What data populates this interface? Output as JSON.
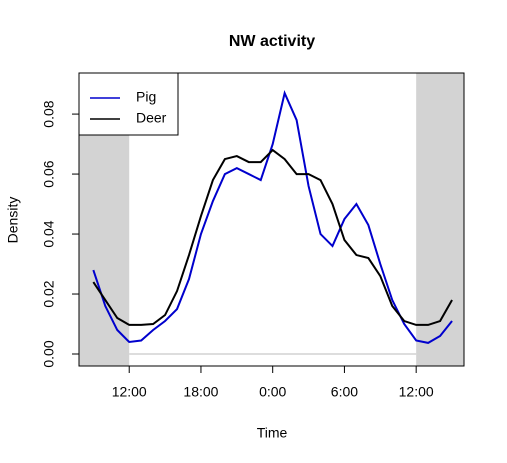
{
  "chart_data": {
    "type": "line",
    "title": "NW activity",
    "x_label": "Time",
    "y_label": "Density",
    "x": [
      9,
      10,
      11,
      12,
      13,
      14,
      15,
      16,
      17,
      18,
      19,
      20,
      21,
      22,
      23,
      24,
      25,
      26,
      27,
      28,
      29,
      30,
      31,
      32,
      33,
      34,
      35,
      36,
      37,
      38,
      39
    ],
    "series": [
      {
        "name": "Pig",
        "color": "#0000cd",
        "values": [
          0.028,
          0.016,
          0.008,
          0.004,
          0.0045,
          0.008,
          0.011,
          0.015,
          0.025,
          0.04,
          0.051,
          0.06,
          0.062,
          0.06,
          0.058,
          0.07,
          0.087,
          0.078,
          0.056,
          0.04,
          0.036,
          0.045,
          0.05,
          0.043,
          0.03,
          0.018,
          0.01,
          0.0045,
          0.0037,
          0.006,
          0.011
        ]
      },
      {
        "name": "Deer",
        "color": "#000000",
        "values": [
          0.024,
          0.018,
          0.012,
          0.0097,
          0.0097,
          0.01,
          0.013,
          0.021,
          0.033,
          0.046,
          0.058,
          0.065,
          0.066,
          0.064,
          0.064,
          0.068,
          0.065,
          0.06,
          0.06,
          0.058,
          0.05,
          0.038,
          0.033,
          0.032,
          0.026,
          0.016,
          0.011,
          0.0097,
          0.0097,
          0.011,
          0.018
        ]
      }
    ],
    "xlim": [
      7.8,
      40
    ],
    "ylim": [
      -0.004,
      0.0937
    ],
    "xticks": [
      {
        "value": 12,
        "label": "12:00"
      },
      {
        "value": 18,
        "label": "18:00"
      },
      {
        "value": 24,
        "label": "0:00"
      },
      {
        "value": 30,
        "label": "6:00"
      },
      {
        "value": 36,
        "label": "12:00"
      }
    ],
    "yticks": [
      {
        "value": 0,
        "label": "0.00"
      },
      {
        "value": 0.02,
        "label": "0.02"
      },
      {
        "value": 0.04,
        "label": "0.04"
      },
      {
        "value": 0.06,
        "label": "0.06"
      },
      {
        "value": 0.08,
        "label": "0.08"
      }
    ],
    "shaded_intervals": [
      [
        7.8,
        12
      ],
      [
        36,
        40
      ]
    ],
    "shade_color": "#d3d3d3",
    "legend": "top-left"
  }
}
